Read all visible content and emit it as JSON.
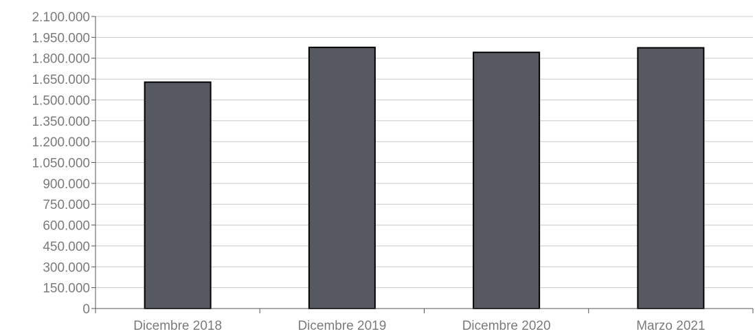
{
  "chart_data": {
    "type": "bar",
    "categories": [
      "Dicembre 2018",
      "Dicembre 2019",
      "Dicembre 2020",
      "Marzo 2021"
    ],
    "values": [
      1628000,
      1878000,
      1842000,
      1875000
    ],
    "title": "",
    "xlabel": "",
    "ylabel": "",
    "ylim": [
      0,
      2100000
    ],
    "yticks": [
      0,
      150000,
      300000,
      450000,
      600000,
      750000,
      900000,
      1050000,
      1200000,
      1350000,
      1500000,
      1650000,
      1800000,
      1950000,
      2100000
    ],
    "ytick_labels": [
      "0",
      "150.000",
      "300.000",
      "450.000",
      "600.000",
      "750.000",
      "900.000",
      "1.050.000",
      "1.200.000",
      "1.350.000",
      "1.500.000",
      "1.650.000",
      "1.800.000",
      "1.950.000",
      "2.100.000"
    ],
    "grid": true,
    "legend": "none",
    "colors": {
      "bar_fill": "#565960",
      "bar_stroke": "#000000",
      "grid": "#c8c8c8",
      "axis": "#555555",
      "text": "#7a7a7a"
    }
  }
}
